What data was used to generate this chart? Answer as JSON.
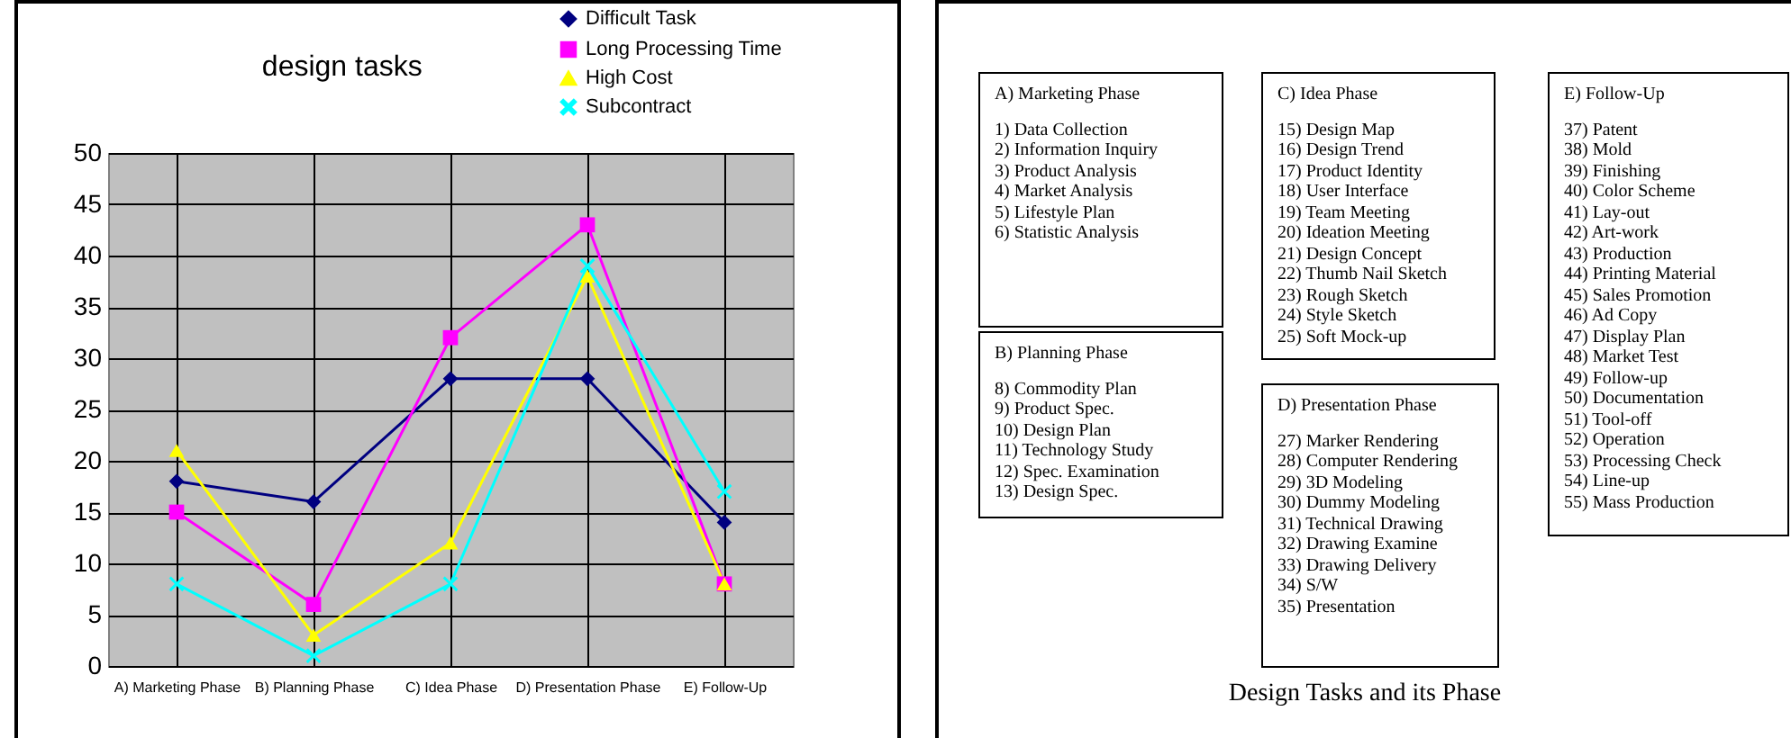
{
  "chart_data": [
    {
      "type": "line",
      "title": "design tasks",
      "categories": [
        "A) Marketing Phase",
        "B) Planning Phase",
        "C) Idea Phase",
        "D) Presentation Phase",
        "E) Follow-Up"
      ],
      "ylim": [
        0,
        50
      ],
      "yticks": [
        0,
        5,
        10,
        15,
        20,
        25,
        30,
        35,
        40,
        45,
        50
      ],
      "grid": true,
      "legend": "top right",
      "series": [
        {
          "name": "Difficult Task",
          "color": "#000080",
          "marker": "diamond",
          "values": [
            18,
            16,
            28,
            28,
            14
          ]
        },
        {
          "name": "Long Processing Time",
          "color": "#ff00ff",
          "marker": "square",
          "values": [
            15,
            6,
            32,
            43,
            8
          ]
        },
        {
          "name": "High Cost",
          "color": "#ffff00",
          "marker": "triangle",
          "values": [
            21,
            3,
            12,
            38,
            8
          ]
        },
        {
          "name": "Subcontract",
          "color": "#00ffff",
          "marker": "cross",
          "values": [
            8,
            1,
            8,
            39,
            17
          ]
        }
      ]
    },
    {
      "type": "other",
      "title": "Design Tasks and its Phase",
      "annotations": [
        "A) Marketing Phase\n1) Data Collection\n2) Information Inquiry\n3) Product Analysis\n4) Market Analysis\n5) Lifestyle Plan\n6) Statistic Analysis",
        "B) Planning Phase\n8) Commodity Plan\n9) Product Spec.\n10) Design Plan\n11) Technology Study\n12) Spec. Examination\n13) Design Spec.",
        "C) Idea Phase\n15) Design Map\n16) Design Trend\n17) Product Identity\n18) User Interface\n19) Team Meeting\n20) Ideation Meeting\n21) Design Concept\n22) Thumb Nail Sketch\n23) Rough Sketch\n24) Style Sketch\n25) Soft Mock-up",
        "D) Presentation Phase\n27) Marker Rendering\n28) Computer Rendering\n29) 3D Modeling\n30) Dummy Modeling\n31) Technical Drawing\n32) Drawing Examine\n33) Drawing Delivery\n34) S/W\n35) Presentation",
        "E) Follow-Up\n37) Patent\n38) Mold\n39) Finishing\n40) Color Scheme\n41) Lay-out\n42) Art-work\n43) Production\n44) Printing Material\n45) Sales Promotion\n46) Ad Copy\n47) Display Plan\n48) Market Test\n49) Follow-up\n50) Documentation\n51) Tool-off\n52) Operation\n53) Processing Check\n54) Line-up\n55) Mass Production"
      ]
    }
  ]
}
